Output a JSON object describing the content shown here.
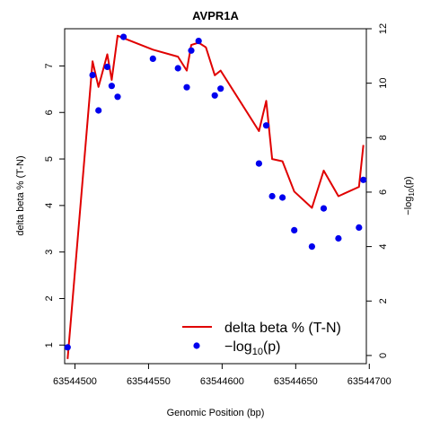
{
  "chart_data": {
    "type": "line",
    "title": "AVPR1A",
    "xlabel": "Genomic Position (bp)",
    "ylabel": "delta beta % (T-N)",
    "y2label": "−log10(p)",
    "xlim": [
      63544493,
      63544698
    ],
    "ylim": [
      0.6,
      7.8
    ],
    "y2lim": [
      -0.3,
      12
    ],
    "x_ticks": [
      63544500,
      63544550,
      63544600,
      63544650,
      63544700
    ],
    "y_ticks": [
      1,
      2,
      3,
      4,
      5,
      6,
      7
    ],
    "y2_ticks": [
      0,
      2,
      4,
      6,
      8,
      10,
      12
    ],
    "legend": {
      "position": "bottom-right",
      "entries": [
        "delta beta % (T-N)",
        "−log10(p)"
      ]
    },
    "colors": {
      "line": "#e00000",
      "points": "#0000ee"
    },
    "series": [
      {
        "name": "delta beta % (T-N)",
        "kind": "line",
        "color": "#e00000",
        "x": [
          63544495,
          63544512,
          63544516,
          63544522,
          63544525,
          63544529,
          63544533,
          63544553,
          63544570,
          63544576,
          63544579,
          63544584,
          63544589,
          63544595,
          63544599,
          63544625,
          63544630,
          63544634,
          63544641,
          63544649,
          63544661,
          63544669,
          63544679,
          63544693,
          63544696
        ],
        "values": [
          0.7,
          7.1,
          6.55,
          7.25,
          6.7,
          7.65,
          7.6,
          7.35,
          7.2,
          6.9,
          7.45,
          7.5,
          7.4,
          6.8,
          6.9,
          5.6,
          6.25,
          5.0,
          4.95,
          4.3,
          3.95,
          4.75,
          4.2,
          4.4,
          5.3
        ]
      },
      {
        "name": "−log10(p)",
        "kind": "points",
        "color": "#0000ee",
        "x": [
          63544495,
          63544512,
          63544516,
          63544522,
          63544525,
          63544529,
          63544533,
          63544553,
          63544570,
          63544576,
          63544579,
          63544584,
          63544595,
          63544599,
          63544625,
          63544630,
          63544634,
          63544641,
          63544649,
          63544661,
          63544669,
          63544679,
          63544693,
          63544696
        ],
        "values": [
          0.3,
          10.3,
          9.0,
          10.6,
          9.9,
          9.5,
          11.7,
          10.9,
          10.55,
          9.85,
          11.2,
          11.55,
          9.55,
          9.8,
          7.05,
          8.45,
          5.85,
          5.8,
          4.6,
          4.0,
          5.4,
          4.3,
          4.7,
          6.45
        ]
      }
    ]
  }
}
